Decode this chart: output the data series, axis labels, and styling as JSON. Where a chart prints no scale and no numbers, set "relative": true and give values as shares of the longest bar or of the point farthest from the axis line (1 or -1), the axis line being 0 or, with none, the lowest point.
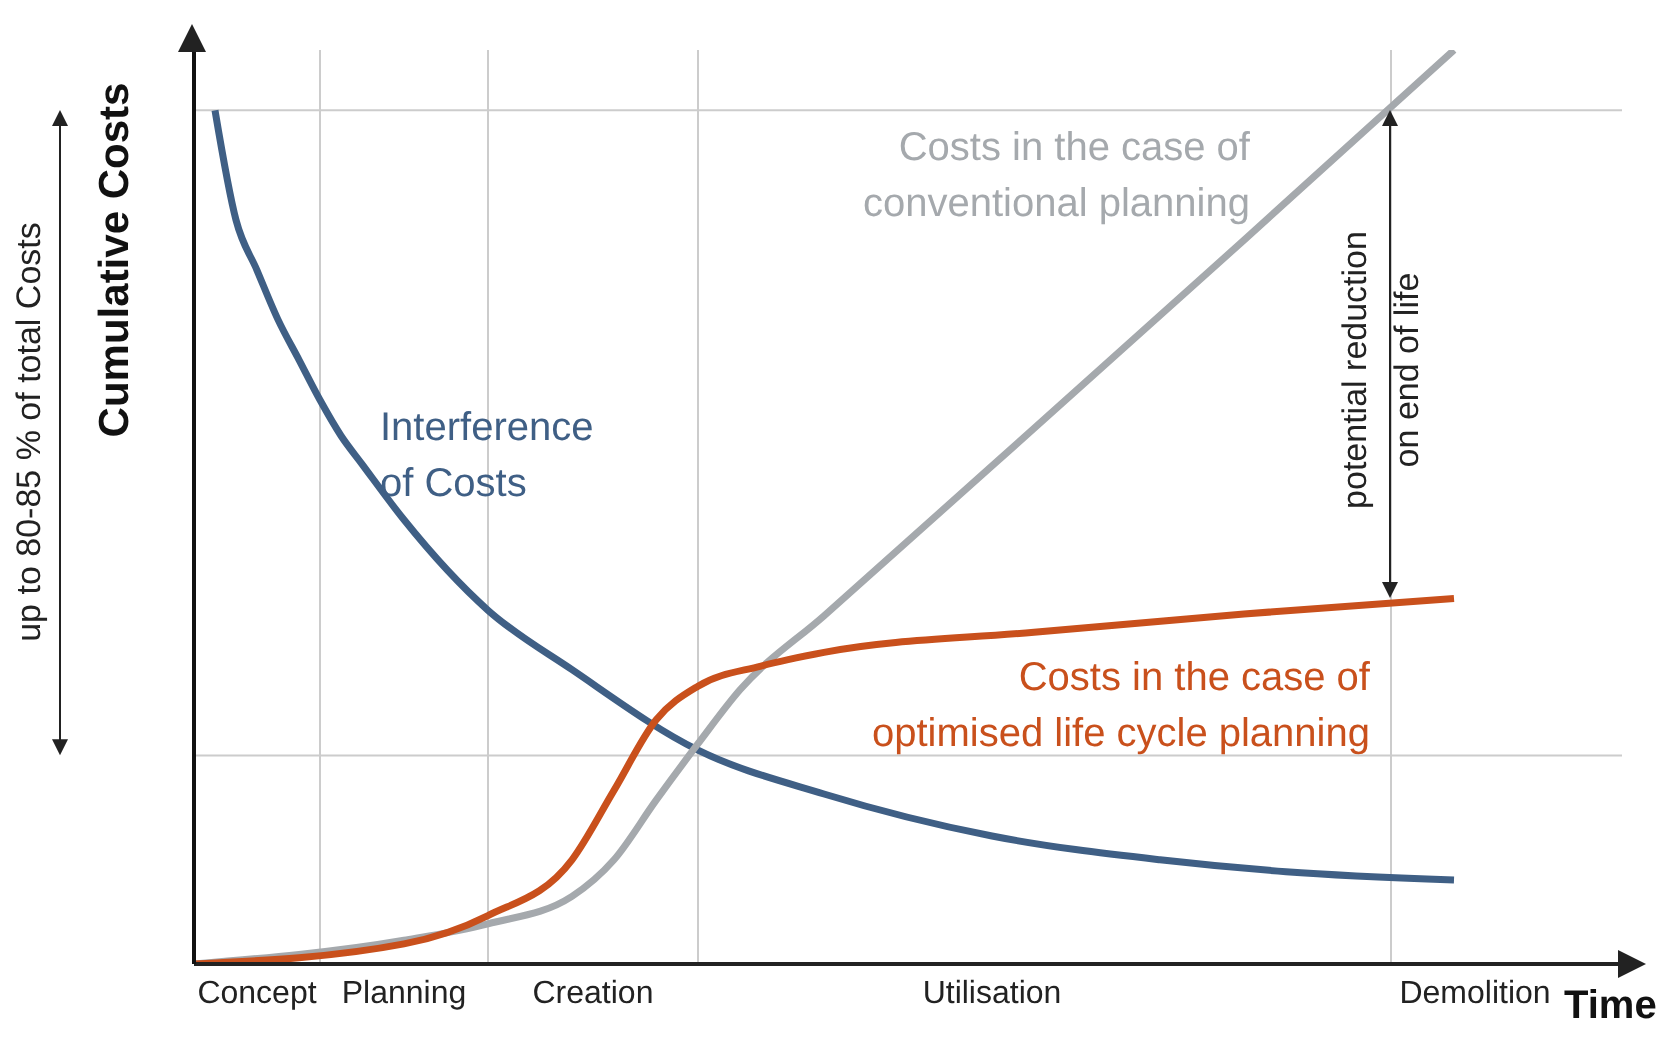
{
  "chart_data": {
    "type": "line",
    "relative": true,
    "marker": "none",
    "xlabel": "Time",
    "ylabel": "Cumulative Costs",
    "categories": [
      null,
      null,
      null,
      "Concept",
      null,
      null,
      null,
      null,
      null,
      null,
      "Planning",
      null,
      null,
      null,
      null,
      null,
      null,
      null,
      null,
      "Creation",
      null,
      null,
      null,
      null,
      null,
      null,
      null,
      null,
      null,
      null,
      null,
      null,
      null,
      null,
      null,
      null,
      null,
      null,
      "Utilisation",
      null,
      null,
      null,
      null,
      null,
      null,
      null,
      null,
      null,
      null,
      null,
      null,
      null,
      null,
      null,
      null,
      null,
      null,
      null,
      null,
      null,
      null,
      "Demolition",
      null,
      null,
      null,
      null,
      null,
      null,
      null
    ],
    "series": [
      {
        "name": "Interference\nof Costs",
        "color": "#3f5f85",
        "values": [
          null,
          0.934,
          0.814,
          0.759,
          0.705,
          0.661,
          0.617,
          0.578,
          0.547,
          null,
          0.486,
          null,
          null,
          null,
          0.387,
          null,
          null,
          null,
          0.322,
          null,
          null,
          null,
          null,
          null,
          0.234,
          null,
          null,
          null,
          null,
          null,
          0.186,
          null,
          null,
          null,
          null,
          null,
          null,
          null,
          0.14,
          null,
          null,
          null,
          null,
          null,
          null,
          null,
          0.114,
          null,
          null,
          null,
          null,
          null,
          0.101,
          null,
          null,
          null,
          null,
          null,
          null,
          null,
          0.092,
          null,
          null,
          null,
          null,
          null,
          null,
          null,
          null
        ]
      },
      {
        "name": "Costs in the case of\nconventional planning",
        "color": "#a5a9ad",
        "values": [
          0,
          null,
          null,
          null,
          null,
          null,
          null,
          null,
          null,
          null,
          0.026,
          null,
          null,
          null,
          0.044,
          null,
          null,
          null,
          0.074,
          null,
          0.114,
          null,
          0.179,
          null,
          0.241,
          null,
          0.3,
          null,
          null,
          null,
          0.381,
          null,
          null,
          null,
          null,
          null,
          null,
          null,
          null,
          null,
          0.586,
          null,
          null,
          null,
          null,
          null,
          null,
          null,
          null,
          null,
          0.792,
          null,
          null,
          null,
          null,
          null,
          null,
          null,
          null,
          null,
          1,
          null,
          null,
          null,
          null,
          null,
          null,
          null,
          null
        ]
      },
      {
        "name": "Costs in the case of\noptimised life cycle planning",
        "color": "#c9501c",
        "values": [
          0,
          null,
          null,
          null,
          null,
          null,
          null,
          null,
          null,
          null,
          0.022,
          null,
          null,
          null,
          0.053,
          null,
          null,
          null,
          0.114,
          null,
          0.19,
          null,
          0.267,
          null,
          0.304,
          null,
          null,
          0.326,
          null,
          null,
          0.341,
          null,
          null,
          null,
          null,
          null,
          null,
          null,
          null,
          null,
          0.363,
          null,
          null,
          null,
          null,
          null,
          null,
          null,
          null,
          null,
          0.383,
          null,
          null,
          null,
          null,
          null,
          null,
          null,
          null,
          null,
          0.4,
          null,
          null,
          null,
          null,
          null,
          null,
          null,
          null
        ]
      }
    ],
    "ref_lines": [
      {
        "axis": "y",
        "value": 0.934,
        "color": "#cccccc"
      },
      {
        "axis": "y",
        "value": 0.228,
        "color": "#cccccc"
      }
    ],
    "annotations": [
      "up to 80-85 % of total Costs",
      "potential reduction\non end of life"
    ]
  }
}
